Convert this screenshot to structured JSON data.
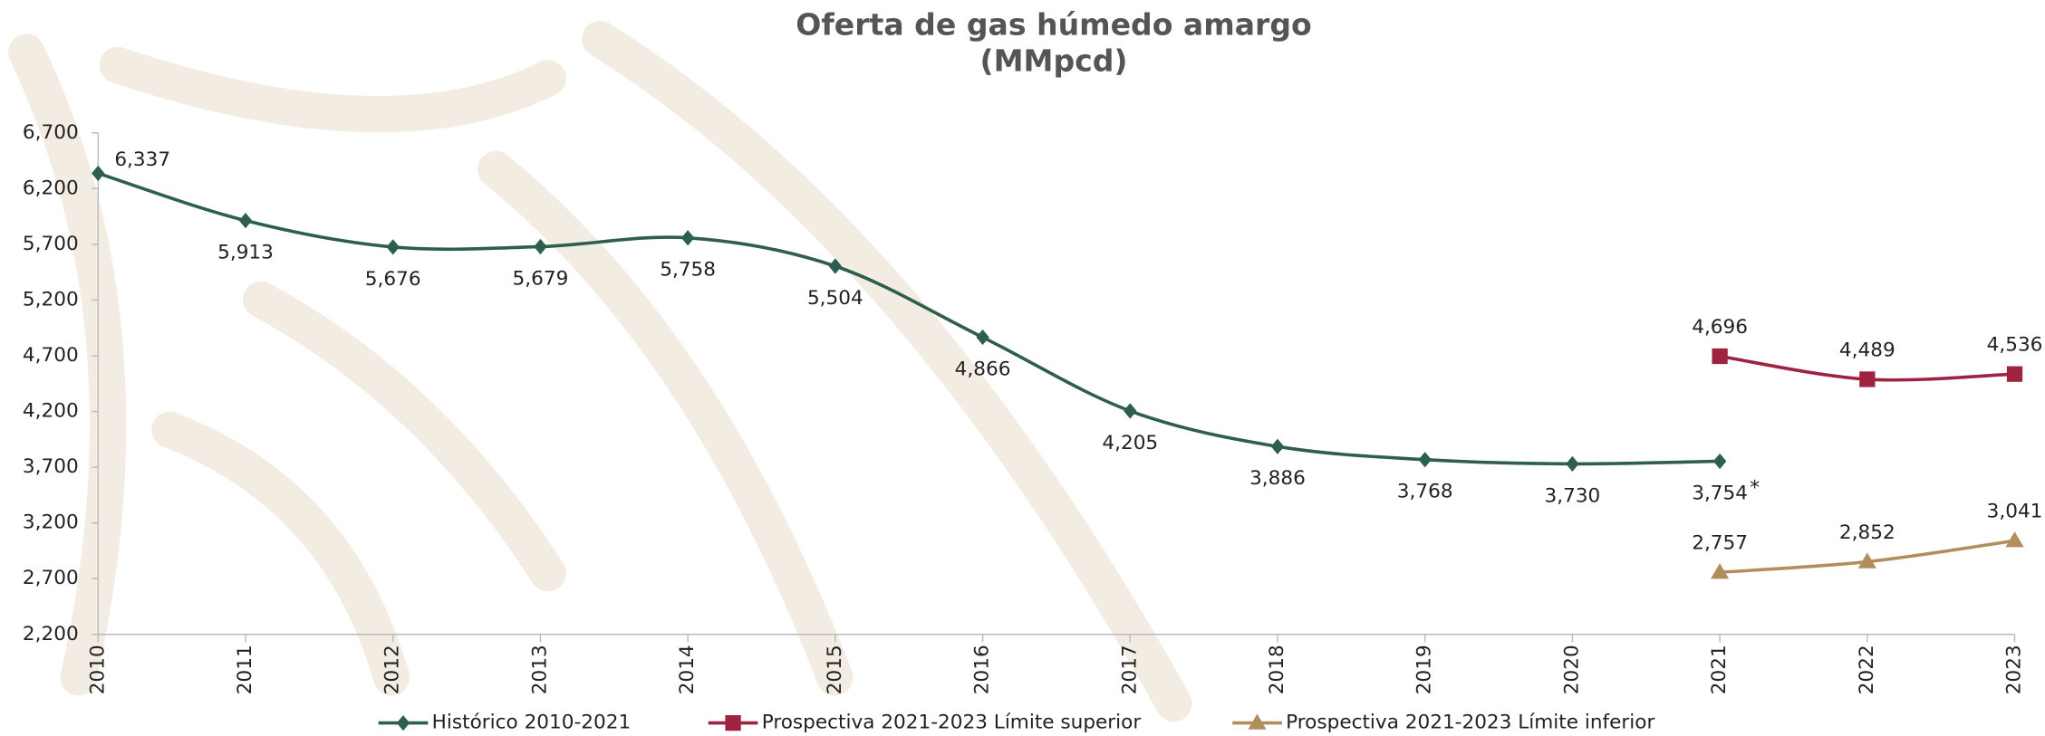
{
  "chart_data": {
    "type": "line",
    "title": "Oferta de gas húmedo amargo",
    "subtitle": "(MMpcd)",
    "categories": [
      "2010",
      "2011",
      "2012",
      "2013",
      "2014",
      "2015",
      "2016",
      "2017",
      "2018",
      "2019",
      "2020",
      "2021",
      "2022",
      "2023"
    ],
    "series": [
      {
        "name": "Histórico 2010-2021",
        "color": "#2e5e4e",
        "marker": "diamond",
        "values": [
          6337,
          5913,
          5676,
          5679,
          5758,
          5504,
          4866,
          4205,
          3886,
          3768,
          3730,
          3754,
          null,
          null
        ],
        "value_labels": [
          "6,337",
          "5,913",
          "5,676",
          "5,679",
          "5,758",
          "5,504",
          "4,866",
          "4,205",
          "3,886",
          "3,768",
          "3,730",
          "3,754",
          null,
          null
        ]
      },
      {
        "name": "Prospectiva 2021-2023 Límite superior",
        "color": "#9f2241",
        "marker": "square",
        "values": [
          null,
          null,
          null,
          null,
          null,
          null,
          null,
          null,
          null,
          null,
          null,
          4696,
          4489,
          4536
        ],
        "value_labels": [
          null,
          null,
          null,
          null,
          null,
          null,
          null,
          null,
          null,
          null,
          null,
          "4,696",
          "4,489",
          "4,536"
        ]
      },
      {
        "name": "Prospectiva 2021-2023 Límite inferior",
        "color": "#b38e5d",
        "marker": "triangle",
        "values": [
          null,
          null,
          null,
          null,
          null,
          null,
          null,
          null,
          null,
          null,
          null,
          2757,
          2852,
          3041
        ],
        "value_labels": [
          null,
          null,
          null,
          null,
          null,
          null,
          null,
          null,
          null,
          null,
          null,
          "2,757",
          "2,852",
          "3,041"
        ]
      }
    ],
    "annotation": "*",
    "ylim": [
      2200,
      6700
    ],
    "yticks": [
      {
        "value": 2200,
        "label": "2,200"
      },
      {
        "value": 2700,
        "label": "2,700"
      },
      {
        "value": 3200,
        "label": "3,200"
      },
      {
        "value": 3700,
        "label": "3,700"
      },
      {
        "value": 4200,
        "label": "4,200"
      },
      {
        "value": 4700,
        "label": "4,700"
      },
      {
        "value": 5200,
        "label": "5,200"
      },
      {
        "value": 5700,
        "label": "5,700"
      },
      {
        "value": 6200,
        "label": "6,200"
      },
      {
        "value": 6700,
        "label": "6,700"
      }
    ],
    "grid": false,
    "smooth": true,
    "legend": "bottom"
  }
}
